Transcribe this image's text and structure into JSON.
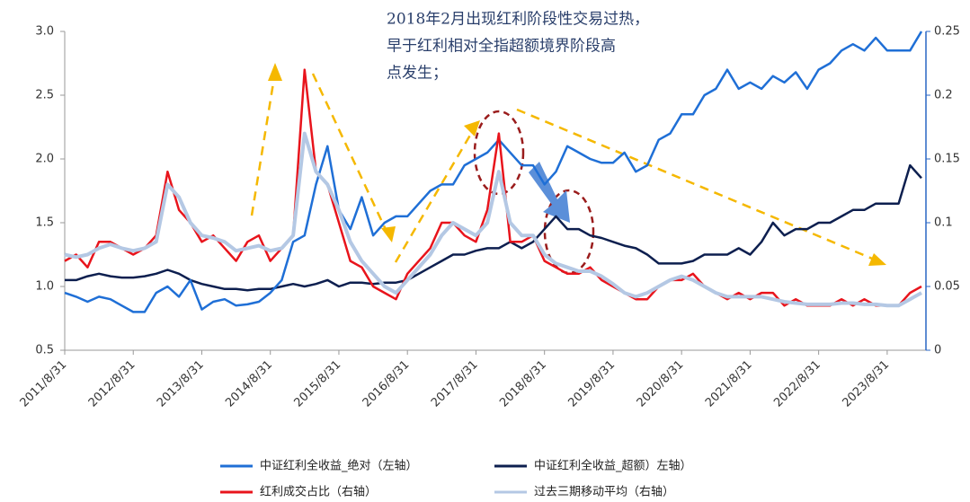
{
  "chart_data": {
    "type": "line",
    "annotation": [
      "2018年2月出现红利阶段性交易过热，",
      "早于红利相对全指超额境界阶段高",
      "点发生；"
    ],
    "categories": [
      "2011/8/31",
      null,
      null,
      null,
      null,
      null,
      "2012/8/31",
      null,
      null,
      null,
      null,
      null,
      "2013/8/31",
      null,
      null,
      null,
      null,
      null,
      "2014/8/31",
      null,
      null,
      null,
      null,
      null,
      "2015/8/31",
      null,
      null,
      null,
      null,
      null,
      "2016/8/31",
      null,
      null,
      null,
      null,
      null,
      "2017/8/31",
      null,
      null,
      null,
      null,
      null,
      "2018/8/31",
      null,
      null,
      null,
      null,
      null,
      "2019/8/31",
      null,
      null,
      null,
      null,
      null,
      "2020/8/31",
      null,
      null,
      null,
      null,
      null,
      "2021/8/31",
      null,
      null,
      null,
      null,
      null,
      "2022/8/31",
      null,
      null,
      null,
      null,
      null,
      "2023/8/31",
      null,
      null,
      null
    ],
    "ylim": [
      0.5,
      3.0
    ],
    "yticks": [
      0.5,
      {
        "value": 1.0,
        "label": "1.0"
      },
      1.5,
      {
        "value": 2.0,
        "label": "2.0"
      },
      2.5,
      {
        "value": 3.0,
        "label": "3.0"
      }
    ],
    "y2lim": [
      0,
      0.25
    ],
    "y2ticks": [
      0,
      0.05,
      0.1,
      0.15,
      0.2,
      0.25
    ],
    "series": [
      {
        "name": "中证红利全收益_绝对（左轴）",
        "color": "#1f6fd6",
        "axis": "y",
        "values": [
          0.95,
          0.92,
          0.88,
          0.92,
          0.9,
          0.85,
          0.8,
          0.8,
          0.95,
          1.0,
          0.92,
          1.05,
          0.82,
          0.88,
          0.9,
          0.85,
          0.86,
          0.88,
          0.95,
          1.05,
          1.35,
          1.4,
          1.8,
          2.1,
          1.6,
          1.45,
          1.7,
          1.4,
          1.5,
          1.55,
          1.55,
          1.65,
          1.75,
          1.8,
          1.8,
          1.95,
          2.0,
          2.05,
          2.15,
          2.05,
          1.95,
          1.95,
          1.8,
          1.9,
          2.1,
          2.05,
          2.0,
          1.97,
          1.97,
          2.05,
          1.9,
          1.95,
          2.15,
          2.2,
          2.35,
          2.35,
          2.5,
          2.55,
          2.7,
          2.55,
          2.6,
          2.55,
          2.65,
          2.6,
          2.68,
          2.55,
          2.7,
          2.75,
          2.85,
          2.9,
          2.85,
          2.95,
          2.85,
          2.85,
          2.85,
          3.0
        ]
      },
      {
        "name": "中证红利全收益_超额）左轴）",
        "color": "#0d1f4f",
        "axis": "y",
        "values": [
          1.05,
          1.05,
          1.08,
          1.1,
          1.08,
          1.07,
          1.07,
          1.08,
          1.1,
          1.13,
          1.1,
          1.05,
          1.02,
          1.0,
          0.98,
          0.98,
          0.97,
          0.98,
          0.98,
          1.0,
          1.02,
          1.0,
          1.02,
          1.05,
          1.0,
          1.03,
          1.03,
          1.02,
          1.03,
          1.03,
          1.05,
          1.1,
          1.15,
          1.2,
          1.25,
          1.25,
          1.28,
          1.3,
          1.3,
          1.35,
          1.3,
          1.35,
          1.45,
          1.55,
          1.45,
          1.45,
          1.4,
          1.38,
          1.35,
          1.32,
          1.3,
          1.25,
          1.18,
          1.18,
          1.18,
          1.2,
          1.25,
          1.25,
          1.25,
          1.3,
          1.25,
          1.35,
          1.5,
          1.4,
          1.45,
          1.45,
          1.5,
          1.5,
          1.55,
          1.6,
          1.6,
          1.65,
          1.65,
          1.65,
          1.95,
          1.85
        ]
      },
      {
        "name": "红利成交占比（右轴）",
        "color": "#e8141c",
        "axis": "y2",
        "values": [
          0.07,
          0.075,
          0.065,
          0.085,
          0.085,
          0.08,
          0.075,
          0.08,
          0.09,
          0.14,
          0.11,
          0.1,
          0.085,
          0.09,
          0.08,
          0.07,
          0.085,
          0.09,
          0.07,
          0.08,
          0.09,
          0.22,
          0.14,
          0.13,
          0.1,
          0.07,
          0.065,
          0.05,
          0.045,
          0.04,
          0.06,
          0.07,
          0.08,
          0.1,
          0.1,
          0.09,
          0.085,
          0.11,
          0.17,
          0.085,
          0.085,
          0.09,
          0.07,
          0.065,
          0.06,
          0.06,
          0.065,
          0.055,
          0.05,
          0.045,
          0.04,
          0.04,
          0.05,
          0.055,
          0.055,
          0.06,
          0.05,
          0.045,
          0.04,
          0.045,
          0.04,
          0.045,
          0.045,
          0.035,
          0.04,
          0.035,
          0.035,
          0.035,
          0.04,
          0.035,
          0.04,
          0.035,
          0.035,
          0.035,
          0.045,
          0.05
        ]
      },
      {
        "name": "过去三期移动平均（右轴）",
        "color": "#b4c8e4",
        "axis": "y2",
        "values": [
          0.075,
          0.073,
          0.075,
          0.08,
          0.083,
          0.08,
          0.078,
          0.08,
          0.085,
          0.13,
          0.12,
          0.1,
          0.09,
          0.088,
          0.085,
          0.078,
          0.08,
          0.082,
          0.078,
          0.08,
          0.09,
          0.17,
          0.14,
          0.13,
          0.11,
          0.085,
          0.07,
          0.06,
          0.05,
          0.045,
          0.055,
          0.065,
          0.075,
          0.09,
          0.1,
          0.095,
          0.09,
          0.1,
          0.14,
          0.1,
          0.09,
          0.09,
          0.075,
          0.068,
          0.065,
          0.062,
          0.062,
          0.058,
          0.052,
          0.045,
          0.042,
          0.045,
          0.05,
          0.055,
          0.058,
          0.055,
          0.05,
          0.045,
          0.042,
          0.042,
          0.042,
          0.042,
          0.04,
          0.038,
          0.037,
          0.036,
          0.036,
          0.036,
          0.037,
          0.037,
          0.036,
          0.036,
          0.035,
          0.035,
          0.04,
          0.045
        ]
      }
    ]
  }
}
